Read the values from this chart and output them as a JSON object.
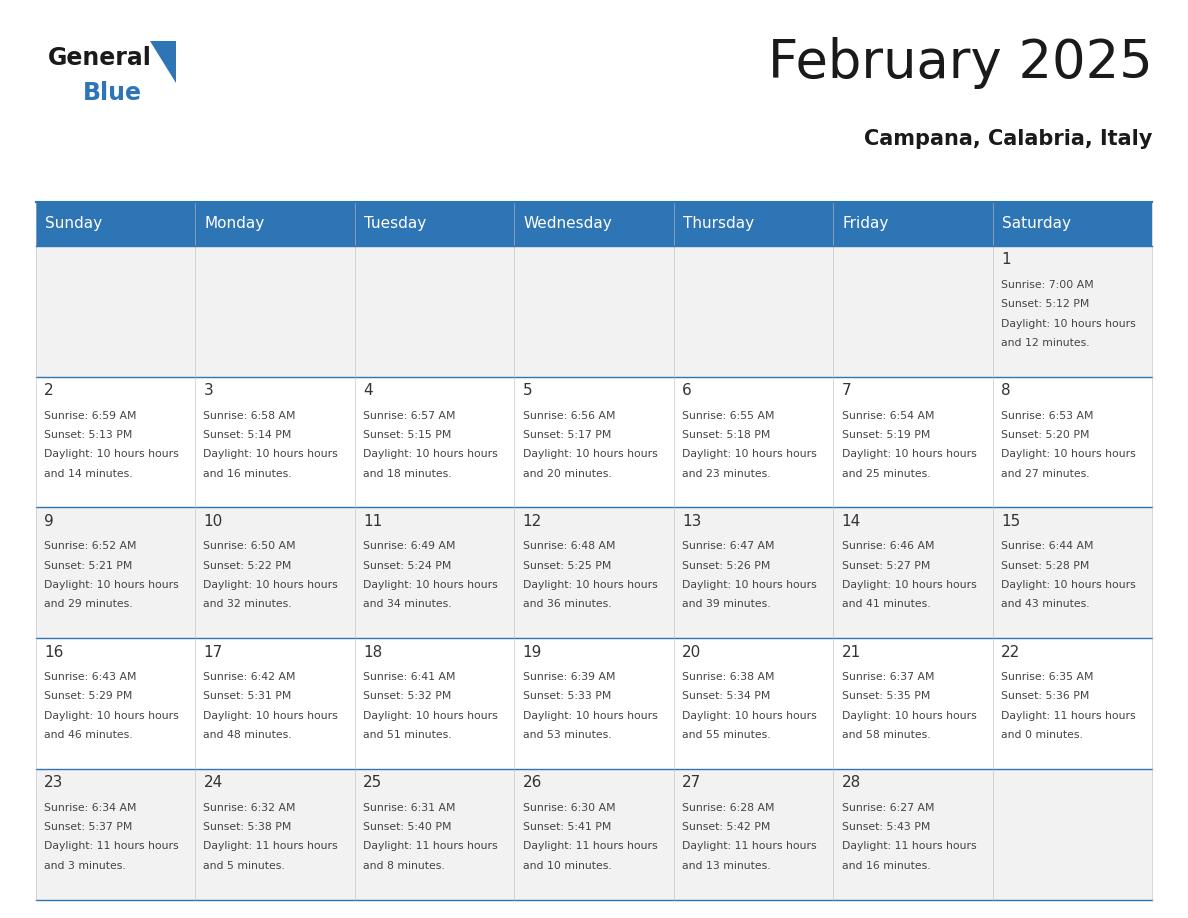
{
  "title": "February 2025",
  "subtitle": "Campana, Calabria, Italy",
  "header_bg_color": "#2E75B6",
  "header_text_color": "#FFFFFF",
  "day_names": [
    "Sunday",
    "Monday",
    "Tuesday",
    "Wednesday",
    "Thursday",
    "Friday",
    "Saturday"
  ],
  "row1_bg": "#F2F2F2",
  "row2_bg": "#FFFFFF",
  "cell_border_color": "#2E75B6",
  "number_color": "#333333",
  "text_color": "#444444",
  "days": [
    {
      "day": 1,
      "row": 0,
      "col": 6,
      "sunrise": "7:00 AM",
      "sunset": "5:12 PM",
      "daylight": "10 hours and 12 minutes."
    },
    {
      "day": 2,
      "row": 1,
      "col": 0,
      "sunrise": "6:59 AM",
      "sunset": "5:13 PM",
      "daylight": "10 hours and 14 minutes."
    },
    {
      "day": 3,
      "row": 1,
      "col": 1,
      "sunrise": "6:58 AM",
      "sunset": "5:14 PM",
      "daylight": "10 hours and 16 minutes."
    },
    {
      "day": 4,
      "row": 1,
      "col": 2,
      "sunrise": "6:57 AM",
      "sunset": "5:15 PM",
      "daylight": "10 hours and 18 minutes."
    },
    {
      "day": 5,
      "row": 1,
      "col": 3,
      "sunrise": "6:56 AM",
      "sunset": "5:17 PM",
      "daylight": "10 hours and 20 minutes."
    },
    {
      "day": 6,
      "row": 1,
      "col": 4,
      "sunrise": "6:55 AM",
      "sunset": "5:18 PM",
      "daylight": "10 hours and 23 minutes."
    },
    {
      "day": 7,
      "row": 1,
      "col": 5,
      "sunrise": "6:54 AM",
      "sunset": "5:19 PM",
      "daylight": "10 hours and 25 minutes."
    },
    {
      "day": 8,
      "row": 1,
      "col": 6,
      "sunrise": "6:53 AM",
      "sunset": "5:20 PM",
      "daylight": "10 hours and 27 minutes."
    },
    {
      "day": 9,
      "row": 2,
      "col": 0,
      "sunrise": "6:52 AM",
      "sunset": "5:21 PM",
      "daylight": "10 hours and 29 minutes."
    },
    {
      "day": 10,
      "row": 2,
      "col": 1,
      "sunrise": "6:50 AM",
      "sunset": "5:22 PM",
      "daylight": "10 hours and 32 minutes."
    },
    {
      "day": 11,
      "row": 2,
      "col": 2,
      "sunrise": "6:49 AM",
      "sunset": "5:24 PM",
      "daylight": "10 hours and 34 minutes."
    },
    {
      "day": 12,
      "row": 2,
      "col": 3,
      "sunrise": "6:48 AM",
      "sunset": "5:25 PM",
      "daylight": "10 hours and 36 minutes."
    },
    {
      "day": 13,
      "row": 2,
      "col": 4,
      "sunrise": "6:47 AM",
      "sunset": "5:26 PM",
      "daylight": "10 hours and 39 minutes."
    },
    {
      "day": 14,
      "row": 2,
      "col": 5,
      "sunrise": "6:46 AM",
      "sunset": "5:27 PM",
      "daylight": "10 hours and 41 minutes."
    },
    {
      "day": 15,
      "row": 2,
      "col": 6,
      "sunrise": "6:44 AM",
      "sunset": "5:28 PM",
      "daylight": "10 hours and 43 minutes."
    },
    {
      "day": 16,
      "row": 3,
      "col": 0,
      "sunrise": "6:43 AM",
      "sunset": "5:29 PM",
      "daylight": "10 hours and 46 minutes."
    },
    {
      "day": 17,
      "row": 3,
      "col": 1,
      "sunrise": "6:42 AM",
      "sunset": "5:31 PM",
      "daylight": "10 hours and 48 minutes."
    },
    {
      "day": 18,
      "row": 3,
      "col": 2,
      "sunrise": "6:41 AM",
      "sunset": "5:32 PM",
      "daylight": "10 hours and 51 minutes."
    },
    {
      "day": 19,
      "row": 3,
      "col": 3,
      "sunrise": "6:39 AM",
      "sunset": "5:33 PM",
      "daylight": "10 hours and 53 minutes."
    },
    {
      "day": 20,
      "row": 3,
      "col": 4,
      "sunrise": "6:38 AM",
      "sunset": "5:34 PM",
      "daylight": "10 hours and 55 minutes."
    },
    {
      "day": 21,
      "row": 3,
      "col": 5,
      "sunrise": "6:37 AM",
      "sunset": "5:35 PM",
      "daylight": "10 hours and 58 minutes."
    },
    {
      "day": 22,
      "row": 3,
      "col": 6,
      "sunrise": "6:35 AM",
      "sunset": "5:36 PM",
      "daylight": "11 hours and 0 minutes."
    },
    {
      "day": 23,
      "row": 4,
      "col": 0,
      "sunrise": "6:34 AM",
      "sunset": "5:37 PM",
      "daylight": "11 hours and 3 minutes."
    },
    {
      "day": 24,
      "row": 4,
      "col": 1,
      "sunrise": "6:32 AM",
      "sunset": "5:38 PM",
      "daylight": "11 hours and 5 minutes."
    },
    {
      "day": 25,
      "row": 4,
      "col": 2,
      "sunrise": "6:31 AM",
      "sunset": "5:40 PM",
      "daylight": "11 hours and 8 minutes."
    },
    {
      "day": 26,
      "row": 4,
      "col": 3,
      "sunrise": "6:30 AM",
      "sunset": "5:41 PM",
      "daylight": "11 hours and 10 minutes."
    },
    {
      "day": 27,
      "row": 4,
      "col": 4,
      "sunrise": "6:28 AM",
      "sunset": "5:42 PM",
      "daylight": "11 hours and 13 minutes."
    },
    {
      "day": 28,
      "row": 4,
      "col": 5,
      "sunrise": "6:27 AM",
      "sunset": "5:43 PM",
      "daylight": "11 hours and 16 minutes."
    }
  ]
}
